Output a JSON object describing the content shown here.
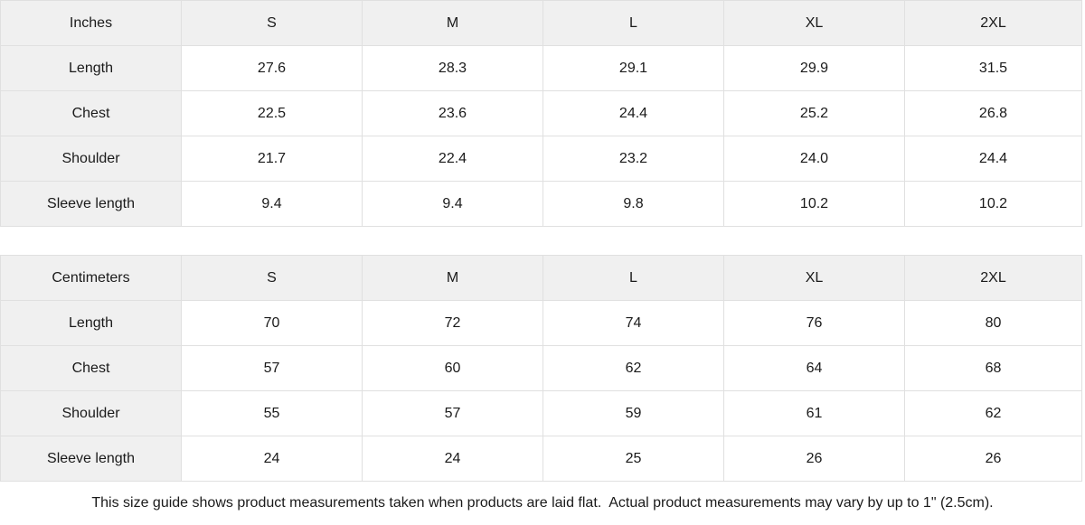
{
  "colors": {
    "header_bg": "#f0f0f0",
    "border": "#e0e0e0",
    "text": "#1a1a1a"
  },
  "tables": [
    {
      "unit_label": "Inches",
      "size_headers": [
        "S",
        "M",
        "L",
        "XL",
        "2XL"
      ],
      "rows": [
        {
          "label": "Length",
          "values": [
            "27.6",
            "28.3",
            "29.1",
            "29.9",
            "31.5"
          ]
        },
        {
          "label": "Chest",
          "values": [
            "22.5",
            "23.6",
            "24.4",
            "25.2",
            "26.8"
          ]
        },
        {
          "label": "Shoulder",
          "values": [
            "21.7",
            "22.4",
            "23.2",
            "24.0",
            "24.4"
          ]
        },
        {
          "label": "Sleeve length",
          "values": [
            "9.4",
            "9.4",
            "9.8",
            "10.2",
            "10.2"
          ]
        }
      ]
    },
    {
      "unit_label": "Centimeters",
      "size_headers": [
        "S",
        "M",
        "L",
        "XL",
        "2XL"
      ],
      "rows": [
        {
          "label": "Length",
          "values": [
            "70",
            "72",
            "74",
            "76",
            "80"
          ]
        },
        {
          "label": "Chest",
          "values": [
            "57",
            "60",
            "62",
            "64",
            "68"
          ]
        },
        {
          "label": "Shoulder",
          "values": [
            "55",
            "57",
            "59",
            "61",
            "62"
          ]
        },
        {
          "label": "Sleeve length",
          "values": [
            "24",
            "24",
            "25",
            "26",
            "26"
          ]
        }
      ]
    }
  ],
  "footer": {
    "note": "This size guide shows product measurements taken when products are laid flat.  Actual product measurements may vary by up to 1\" (2.5cm)."
  }
}
